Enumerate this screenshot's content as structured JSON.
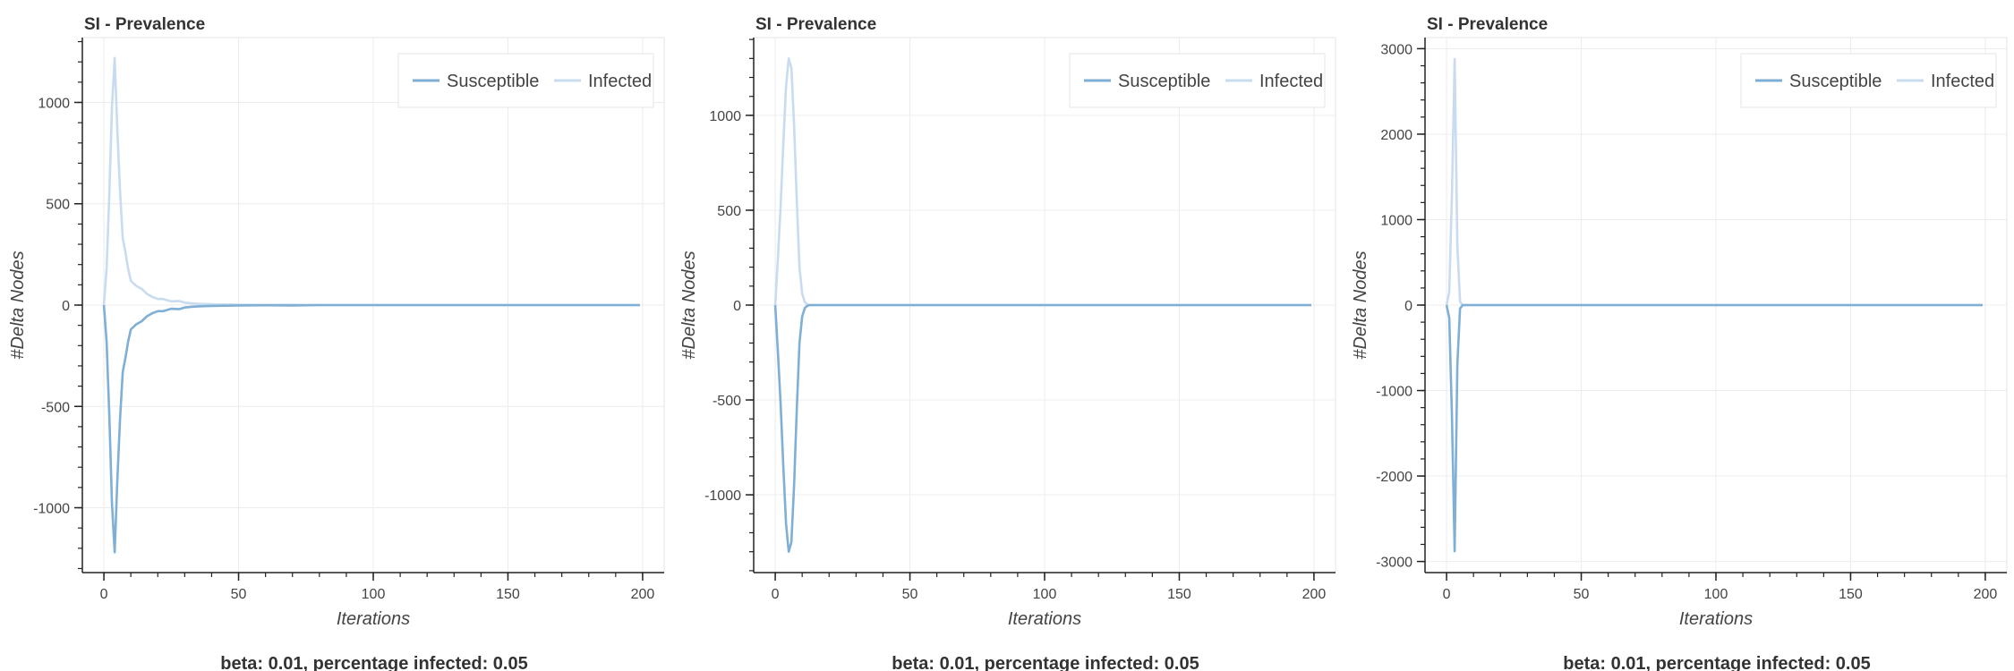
{
  "chart_data": [
    {
      "type": "line",
      "title": "SI - Prevalence",
      "xlabel": "Iterations",
      "ylabel": "#Delta Nodes",
      "caption": "beta: 0.01, percentage infected: 0.05",
      "xlim": [
        -8,
        208
      ],
      "ylim": [
        -1320,
        1320
      ],
      "xticks": [
        0,
        50,
        100,
        150,
        200
      ],
      "yticks": [
        -1000,
        -500,
        0,
        500,
        1000
      ],
      "minor_yticks": 100,
      "grid": true,
      "legend_position": "top-right",
      "series": [
        {
          "name": "Susceptible",
          "color": "#7fafd4",
          "points": [
            [
              0,
              0
            ],
            [
              1,
              -180
            ],
            [
              2,
              -540
            ],
            [
              3,
              -980
            ],
            [
              4,
              -1220
            ],
            [
              5,
              -860
            ],
            [
              6,
              -560
            ],
            [
              7,
              -330
            ],
            [
              8,
              -260
            ],
            [
              9,
              -180
            ],
            [
              10,
              -120
            ],
            [
              12,
              -95
            ],
            [
              14,
              -80
            ],
            [
              16,
              -55
            ],
            [
              18,
              -40
            ],
            [
              20,
              -30
            ],
            [
              22,
              -30
            ],
            [
              25,
              -18
            ],
            [
              28,
              -20
            ],
            [
              30,
              -12
            ],
            [
              33,
              -8
            ],
            [
              36,
              -6
            ],
            [
              40,
              -4
            ],
            [
              45,
              -3
            ],
            [
              50,
              -2
            ],
            [
              60,
              -1
            ],
            [
              70,
              -2
            ],
            [
              80,
              0
            ],
            [
              100,
              0
            ],
            [
              150,
              0
            ],
            [
              199,
              0
            ]
          ]
        },
        {
          "name": "Infected",
          "color": "#c9dcef",
          "points": [
            [
              0,
              0
            ],
            [
              1,
              180
            ],
            [
              2,
              540
            ],
            [
              3,
              980
            ],
            [
              4,
              1220
            ],
            [
              5,
              860
            ],
            [
              6,
              560
            ],
            [
              7,
              330
            ],
            [
              8,
              260
            ],
            [
              9,
              180
            ],
            [
              10,
              120
            ],
            [
              12,
              95
            ],
            [
              14,
              80
            ],
            [
              16,
              55
            ],
            [
              18,
              40
            ],
            [
              20,
              30
            ],
            [
              22,
              30
            ],
            [
              25,
              18
            ],
            [
              28,
              20
            ],
            [
              30,
              12
            ],
            [
              33,
              8
            ],
            [
              36,
              6
            ],
            [
              40,
              4
            ],
            [
              45,
              3
            ],
            [
              50,
              2
            ],
            [
              60,
              1
            ],
            [
              70,
              2
            ],
            [
              80,
              0
            ],
            [
              100,
              0
            ],
            [
              150,
              0
            ],
            [
              199,
              0
            ]
          ]
        }
      ]
    },
    {
      "type": "line",
      "title": "SI - Prevalence",
      "xlabel": "Iterations",
      "ylabel": "#Delta Nodes",
      "caption": "beta: 0.01, percentage infected: 0.05",
      "xlim": [
        -8,
        208
      ],
      "ylim": [
        -1410,
        1410
      ],
      "xticks": [
        0,
        50,
        100,
        150,
        200
      ],
      "yticks": [
        -1000,
        -500,
        0,
        500,
        1000
      ],
      "minor_yticks": 100,
      "grid": true,
      "legend_position": "top-right",
      "series": [
        {
          "name": "Susceptible",
          "color": "#7fafd4",
          "points": [
            [
              0,
              0
            ],
            [
              1,
              -250
            ],
            [
              2,
              -520
            ],
            [
              3,
              -850
            ],
            [
              4,
              -1150
            ],
            [
              5,
              -1300
            ],
            [
              6,
              -1250
            ],
            [
              7,
              -950
            ],
            [
              8,
              -550
            ],
            [
              9,
              -200
            ],
            [
              10,
              -60
            ],
            [
              11,
              -15
            ],
            [
              12,
              -3
            ],
            [
              13,
              0
            ],
            [
              50,
              0
            ],
            [
              100,
              0
            ],
            [
              150,
              0
            ],
            [
              199,
              0
            ]
          ]
        },
        {
          "name": "Infected",
          "color": "#c9dcef",
          "points": [
            [
              0,
              0
            ],
            [
              1,
              250
            ],
            [
              2,
              520
            ],
            [
              3,
              850
            ],
            [
              4,
              1150
            ],
            [
              5,
              1300
            ],
            [
              6,
              1250
            ],
            [
              7,
              950
            ],
            [
              8,
              550
            ],
            [
              9,
              200
            ],
            [
              10,
              60
            ],
            [
              11,
              15
            ],
            [
              12,
              3
            ],
            [
              13,
              0
            ],
            [
              50,
              0
            ],
            [
              100,
              0
            ],
            [
              150,
              0
            ],
            [
              199,
              0
            ]
          ]
        }
      ]
    },
    {
      "type": "line",
      "title": "SI - Prevalence",
      "xlabel": "Iterations",
      "ylabel": "#Delta Nodes",
      "caption": "beta: 0.01, percentage infected: 0.05",
      "xlim": [
        -8,
        208
      ],
      "ylim": [
        -3130,
        3130
      ],
      "xticks": [
        0,
        50,
        100,
        150,
        200
      ],
      "yticks": [
        -3000,
        -2000,
        -1000,
        0,
        1000,
        2000,
        3000
      ],
      "minor_yticks": 200,
      "grid": true,
      "legend_position": "top-right",
      "series": [
        {
          "name": "Susceptible",
          "color": "#7fafd4",
          "points": [
            [
              0,
              0
            ],
            [
              1,
              -150
            ],
            [
              2,
              -1300
            ],
            [
              3,
              -2880
            ],
            [
              4,
              -700
            ],
            [
              5,
              -40
            ],
            [
              6,
              0
            ],
            [
              50,
              0
            ],
            [
              100,
              0
            ],
            [
              150,
              0
            ],
            [
              199,
              0
            ]
          ]
        },
        {
          "name": "Infected",
          "color": "#c9dcef",
          "points": [
            [
              0,
              0
            ],
            [
              1,
              150
            ],
            [
              2,
              1300
            ],
            [
              3,
              2880
            ],
            [
              4,
              700
            ],
            [
              5,
              40
            ],
            [
              6,
              0
            ],
            [
              50,
              0
            ],
            [
              100,
              0
            ],
            [
              150,
              0
            ],
            [
              199,
              0
            ]
          ]
        }
      ]
    }
  ]
}
